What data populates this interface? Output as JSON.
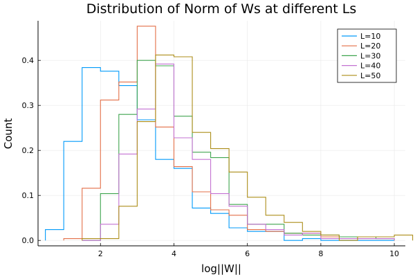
{
  "chart_data": {
    "type": "histogram-step",
    "title": "Distribution of Norm of Ws at different Ls",
    "xlabel": "log||W||",
    "ylabel": "Count",
    "xlim": [
      0.3,
      10.3
    ],
    "ylim": [
      -0.012,
      0.488
    ],
    "xticks": [
      2,
      4,
      6,
      8,
      10
    ],
    "yticks": [
      0.0,
      0.1,
      0.2,
      0.3,
      0.4
    ],
    "ytick_labels": [
      "0.0",
      "0.1",
      "0.2",
      "0.3",
      "0.4"
    ],
    "grid": true,
    "legend_position": "top-right",
    "bin_width": 0.5,
    "series": [
      {
        "name": "L=10",
        "color": "#009AFA",
        "x_start": 0.5,
        "values": [
          0.024,
          0.22,
          0.384,
          0.376,
          0.344,
          0.268,
          0.18,
          0.16,
          0.072,
          0.06,
          0.028,
          0.02,
          0.02,
          0.0,
          0.004,
          0.0,
          0.0,
          0.0,
          0.0
        ]
      },
      {
        "name": "L=20",
        "color": "#E36F47",
        "x_start": 1.0,
        "values": [
          0.004,
          0.116,
          0.312,
          0.352,
          0.476,
          0.252,
          0.164,
          0.108,
          0.068,
          0.056,
          0.024,
          0.02,
          0.016,
          0.016,
          0.008,
          0.008,
          0.004,
          0.004
        ]
      },
      {
        "name": "L=30",
        "color": "#3EA44E",
        "x_start": 1.5,
        "values": [
          0.0,
          0.104,
          0.28,
          0.4,
          0.388,
          0.276,
          0.196,
          0.184,
          0.08,
          0.036,
          0.036,
          0.016,
          0.012,
          0.012,
          0.008,
          0.008,
          0.004
        ]
      },
      {
        "name": "L=40",
        "color": "#C371D2",
        "x_start": 1.5,
        "values": [
          0.0,
          0.036,
          0.192,
          0.292,
          0.392,
          0.228,
          0.18,
          0.104,
          0.076,
          0.036,
          0.024,
          0.012,
          0.016,
          0.004,
          0.004,
          0.004,
          0.004
        ]
      },
      {
        "name": "L=50",
        "color": "#AC8D18",
        "x_start": 1.5,
        "values": [
          0.004,
          0.004,
          0.076,
          0.264,
          0.412,
          0.408,
          0.24,
          0.204,
          0.152,
          0.096,
          0.056,
          0.04,
          0.02,
          0.012,
          0.0,
          0.008,
          0.008,
          0.012
        ]
      }
    ]
  }
}
